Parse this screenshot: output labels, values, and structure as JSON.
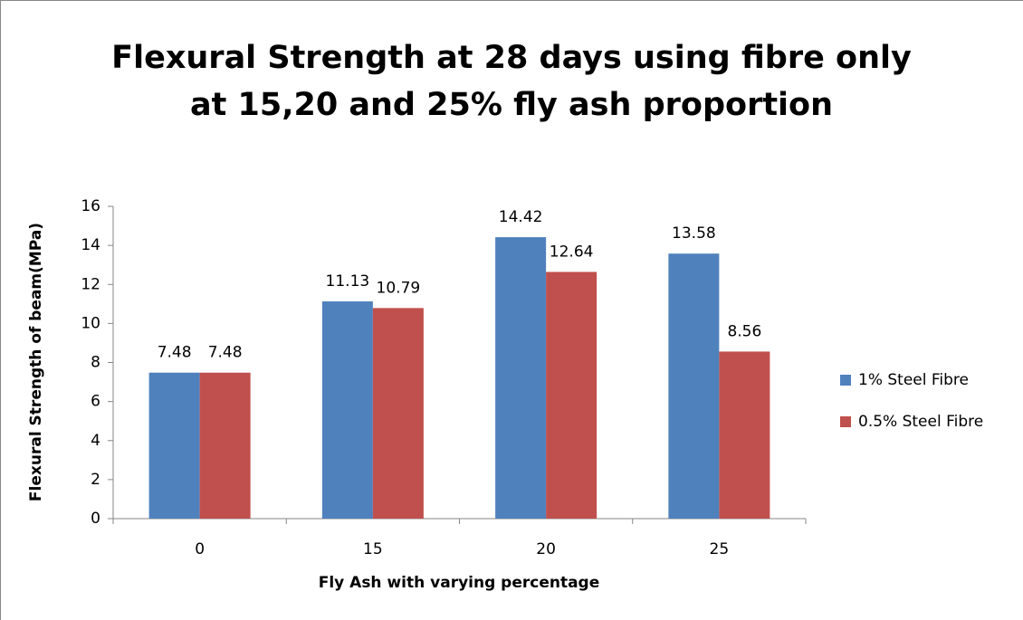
{
  "chart_data": {
    "type": "bar",
    "title": "Flexural Strength at 28 days using fibre only at 15,20 and 25% fly ash proportion",
    "x_label": "Fly Ash with varying percentage",
    "y_label": "Flexural Strength of beam(MPa)",
    "categories": [
      "0",
      "15",
      "20",
      "25"
    ],
    "series": [
      {
        "name": "1% Steel Fibre",
        "color": "#4f81bd",
        "values": [
          7.48,
          11.13,
          14.42,
          13.58
        ]
      },
      {
        "name": "0.5% Steel Fibre",
        "color": "#c0504d",
        "values": [
          7.48,
          10.79,
          12.64,
          8.56
        ]
      }
    ],
    "ylim": [
      0,
      16
    ],
    "yticks": [
      0,
      2,
      4,
      6,
      8,
      10,
      12,
      14,
      16
    ],
    "grid": false,
    "legend": "right"
  }
}
